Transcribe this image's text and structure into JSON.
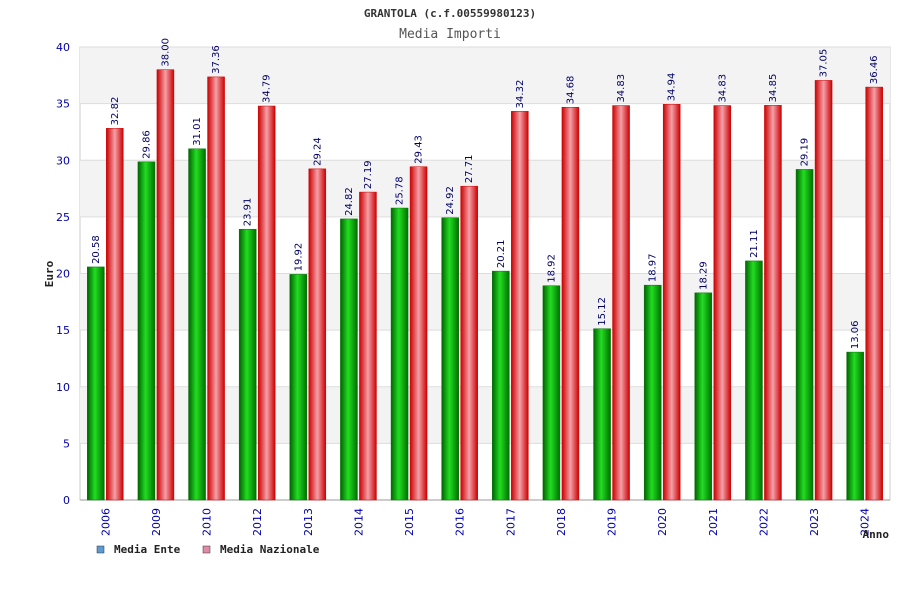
{
  "chart_data": {
    "type": "bar",
    "title": "GRANTOLA (c.f.00559980123)",
    "subtitle": "Media Importi",
    "xlabel": "Anno",
    "ylabel": "Euro",
    "ylim": [
      0,
      40
    ],
    "yticks": [
      0,
      5,
      10,
      15,
      20,
      25,
      30,
      35,
      40
    ],
    "grid": true,
    "legend_position": "bottom-left",
    "categories": [
      "2006",
      "2009",
      "2010",
      "2012",
      "2013",
      "2014",
      "2015",
      "2016",
      "2017",
      "2018",
      "2019",
      "2020",
      "2021",
      "2022",
      "2023",
      "2024"
    ],
    "series": [
      {
        "name": "Media Ente",
        "color": "#00a000",
        "legend_color": "#5b9bd5",
        "values": [
          20.58,
          29.86,
          31.01,
          23.91,
          19.92,
          24.82,
          25.78,
          24.92,
          20.21,
          18.92,
          15.12,
          18.97,
          18.29,
          21.11,
          29.19,
          13.06
        ],
        "labels": [
          "20.58",
          "29.86",
          "31.01",
          "23.91",
          "19.92",
          "24.82",
          "25.78",
          "24.92",
          "20.21",
          "18.92",
          "15.12",
          "18.97",
          "18.29",
          "21.11",
          "29.19",
          "13.06"
        ]
      },
      {
        "name": "Media Nazionale",
        "color": "#e00000",
        "legend_color": "#e08aa8",
        "values": [
          32.82,
          38.0,
          37.36,
          34.79,
          29.24,
          27.19,
          29.43,
          27.71,
          34.32,
          34.68,
          34.83,
          34.94,
          34.83,
          34.85,
          37.05,
          36.46
        ],
        "labels": [
          "32.82",
          "38.00",
          "37.36",
          "34.79",
          "29.24",
          "27.19",
          "29.43",
          "27.71",
          "34.32",
          "34.68",
          "34.83",
          "34.94",
          "34.83",
          "34.85",
          "37.05",
          "36.46"
        ]
      }
    ]
  }
}
